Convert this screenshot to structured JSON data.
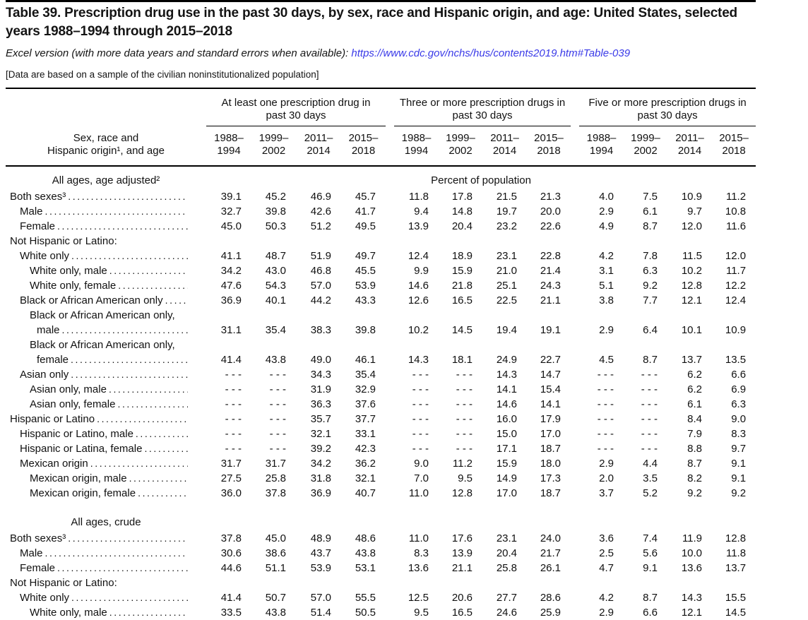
{
  "title_line": "Table 39. Prescription drug use in the past 30 days, by sex, race and Hispanic origin, and age: United States, selected years 1988–1994 through 2015–2018",
  "excel": {
    "prefix": "Excel version (with more data years and standard errors when available): ",
    "link": "https://www.cdc.gov/nchs/hus/contents2019.htm#Table-039"
  },
  "note": "[Data are based on a sample of the civilian noninstitutionalized population]",
  "colors": {
    "link": "#3a3ae8",
    "text": "#141414",
    "rule": "#000000"
  },
  "table": {
    "row_header_line1": "Sex, race and",
    "row_header_line2": "Hispanic origin¹, and age",
    "groups": [
      {
        "label_line1": "At least one prescription drug in",
        "label_line2": "past 30 days",
        "years": [
          {
            "l1": "1988–",
            "l2": "1994"
          },
          {
            "l1": "1999–",
            "l2": "2002"
          },
          {
            "l1": "2011–",
            "l2": "2014"
          },
          {
            "l1": "2015–",
            "l2": "2018"
          }
        ]
      },
      {
        "label_line1": "Three or more prescription drugs in",
        "label_line2": "past 30 days",
        "years": [
          {
            "l1": "1988–",
            "l2": "1994"
          },
          {
            "l1": "1999–",
            "l2": "2002"
          },
          {
            "l1": "2011–",
            "l2": "2014"
          },
          {
            "l1": "2015–",
            "l2": "2018"
          }
        ]
      },
      {
        "label_line1": "Five or more prescription drugs in",
        "label_line2": "past 30 days",
        "years": [
          {
            "l1": "1988–",
            "l2": "1994"
          },
          {
            "l1": "1999–",
            "l2": "2002"
          },
          {
            "l1": "2011–",
            "l2": "2014"
          },
          {
            "l1": "2015–",
            "l2": "2018"
          }
        ]
      }
    ],
    "sections": [
      {
        "header": "All ages, age adjusted²",
        "unit_label": "Percent of population",
        "rows": [
          {
            "label": "Both sexes³",
            "indent": 0,
            "values": [
              "39.1",
              "45.2",
              "46.9",
              "45.7",
              "11.8",
              "17.8",
              "21.5",
              "21.3",
              "4.0",
              "7.5",
              "10.9",
              "11.2"
            ]
          },
          {
            "label": "Male",
            "indent": 1,
            "values": [
              "32.7",
              "39.8",
              "42.6",
              "41.7",
              "9.4",
              "14.8",
              "19.7",
              "20.0",
              "2.9",
              "6.1",
              "9.7",
              "10.8"
            ]
          },
          {
            "label": "Female",
            "indent": 1,
            "values": [
              "45.0",
              "50.3",
              "51.2",
              "49.5",
              "13.9",
              "20.4",
              "23.2",
              "22.6",
              "4.9",
              "8.7",
              "12.0",
              "11.6"
            ]
          },
          {
            "label": "Not Hispanic or Latino:",
            "indent": 0,
            "dots": false
          },
          {
            "label": "White only",
            "indent": 1,
            "values": [
              "41.1",
              "48.7",
              "51.9",
              "49.7",
              "12.4",
              "18.9",
              "23.1",
              "22.8",
              "4.2",
              "7.8",
              "11.5",
              "12.0"
            ]
          },
          {
            "label": "White only, male",
            "indent": 2,
            "values": [
              "34.2",
              "43.0",
              "46.8",
              "45.5",
              "9.9",
              "15.9",
              "21.0",
              "21.4",
              "3.1",
              "6.3",
              "10.2",
              "11.7"
            ]
          },
          {
            "label": "White only, female",
            "indent": 2,
            "values": [
              "47.6",
              "54.3",
              "57.0",
              "53.9",
              "14.6",
              "21.8",
              "25.1",
              "24.3",
              "5.1",
              "9.2",
              "12.8",
              "12.2"
            ]
          },
          {
            "label": "Black or African American only",
            "indent": 1,
            "values": [
              "36.9",
              "40.1",
              "44.2",
              "43.3",
              "12.6",
              "16.5",
              "22.5",
              "21.1",
              "3.8",
              "7.7",
              "12.1",
              "12.4"
            ]
          },
          {
            "label1": "Black or African American only,",
            "label2": "male",
            "indent": 2,
            "values": [
              "31.1",
              "35.4",
              "38.3",
              "39.8",
              "10.2",
              "14.5",
              "19.4",
              "19.1",
              "2.9",
              "6.4",
              "10.1",
              "10.9"
            ]
          },
          {
            "label1": "Black or African American only,",
            "label2": "female",
            "indent": 2,
            "values": [
              "41.4",
              "43.8",
              "49.0",
              "46.1",
              "14.3",
              "18.1",
              "24.9",
              "22.7",
              "4.5",
              "8.7",
              "13.7",
              "13.5"
            ]
          },
          {
            "label": "Asian only",
            "indent": 1,
            "values": [
              "- - -",
              "- - -",
              "34.3",
              "35.4",
              "- - -",
              "- - -",
              "14.3",
              "14.7",
              "- - -",
              "- - -",
              "6.2",
              "6.6"
            ]
          },
          {
            "label": "Asian only, male",
            "indent": 2,
            "values": [
              "- - -",
              "- - -",
              "31.9",
              "32.9",
              "- - -",
              "- - -",
              "14.1",
              "15.4",
              "- - -",
              "- - -",
              "6.2",
              "6.9"
            ]
          },
          {
            "label": "Asian only, female",
            "indent": 2,
            "values": [
              "- - -",
              "- - -",
              "36.3",
              "37.6",
              "- - -",
              "- - -",
              "14.6",
              "14.1",
              "- - -",
              "- - -",
              "6.1",
              "6.3"
            ]
          },
          {
            "label": "Hispanic or Latino",
            "indent": 0,
            "values": [
              "- - -",
              "- - -",
              "35.7",
              "37.7",
              "- - -",
              "- - -",
              "16.0",
              "17.9",
              "- - -",
              "- - -",
              "8.4",
              "9.0"
            ]
          },
          {
            "label": "Hispanic or Latino, male",
            "indent": 1,
            "values": [
              "- - -",
              "- - -",
              "32.1",
              "33.1",
              "- - -",
              "- - -",
              "15.0",
              "17.0",
              "- - -",
              "- - -",
              "7.9",
              "8.3"
            ]
          },
          {
            "label": "Hispanic or Latina, female",
            "indent": 1,
            "values": [
              "- - -",
              "- - -",
              "39.2",
              "42.3",
              "- - -",
              "- - -",
              "17.1",
              "18.7",
              "- - -",
              "- - -",
              "8.8",
              "9.7"
            ]
          },
          {
            "label": "Mexican origin",
            "indent": 1,
            "values": [
              "31.7",
              "31.7",
              "34.2",
              "36.2",
              "9.0",
              "11.2",
              "15.9",
              "18.0",
              "2.9",
              "4.4",
              "8.7",
              "9.1"
            ]
          },
          {
            "label": "Mexican origin, male",
            "indent": 2,
            "values": [
              "27.5",
              "25.8",
              "31.8",
              "32.1",
              "7.0",
              "9.5",
              "14.9",
              "17.3",
              "2.0",
              "3.5",
              "8.2",
              "9.1"
            ]
          },
          {
            "label": "Mexican origin, female",
            "indent": 2,
            "values": [
              "36.0",
              "37.8",
              "36.9",
              "40.7",
              "11.0",
              "12.8",
              "17.0",
              "18.7",
              "3.7",
              "5.2",
              "9.2",
              "9.2"
            ]
          }
        ]
      },
      {
        "header": "All ages, crude",
        "unit_label": "",
        "rows": [
          {
            "label": "Both sexes³",
            "indent": 0,
            "values": [
              "37.8",
              "45.0",
              "48.9",
              "48.6",
              "11.0",
              "17.6",
              "23.1",
              "24.0",
              "3.6",
              "7.4",
              "11.9",
              "12.8"
            ]
          },
          {
            "label": "Male",
            "indent": 1,
            "values": [
              "30.6",
              "38.6",
              "43.7",
              "43.8",
              "8.3",
              "13.9",
              "20.4",
              "21.7",
              "2.5",
              "5.6",
              "10.0",
              "11.8"
            ]
          },
          {
            "label": "Female",
            "indent": 1,
            "values": [
              "44.6",
              "51.1",
              "53.9",
              "53.1",
              "13.6",
              "21.1",
              "25.8",
              "26.1",
              "4.7",
              "9.1",
              "13.6",
              "13.7"
            ]
          },
          {
            "label": "Not Hispanic or Latino:",
            "indent": 0,
            "dots": false
          },
          {
            "label": "White only",
            "indent": 1,
            "values": [
              "41.4",
              "50.7",
              "57.0",
              "55.5",
              "12.5",
              "20.6",
              "27.7",
              "28.6",
              "4.2",
              "8.7",
              "14.3",
              "15.5"
            ]
          },
          {
            "label": "White only, male",
            "indent": 2,
            "values": [
              "33.5",
              "43.8",
              "51.4",
              "50.5",
              "9.5",
              "16.5",
              "24.6",
              "25.9",
              "2.9",
              "6.6",
              "12.1",
              "14.5"
            ]
          }
        ]
      }
    ]
  }
}
